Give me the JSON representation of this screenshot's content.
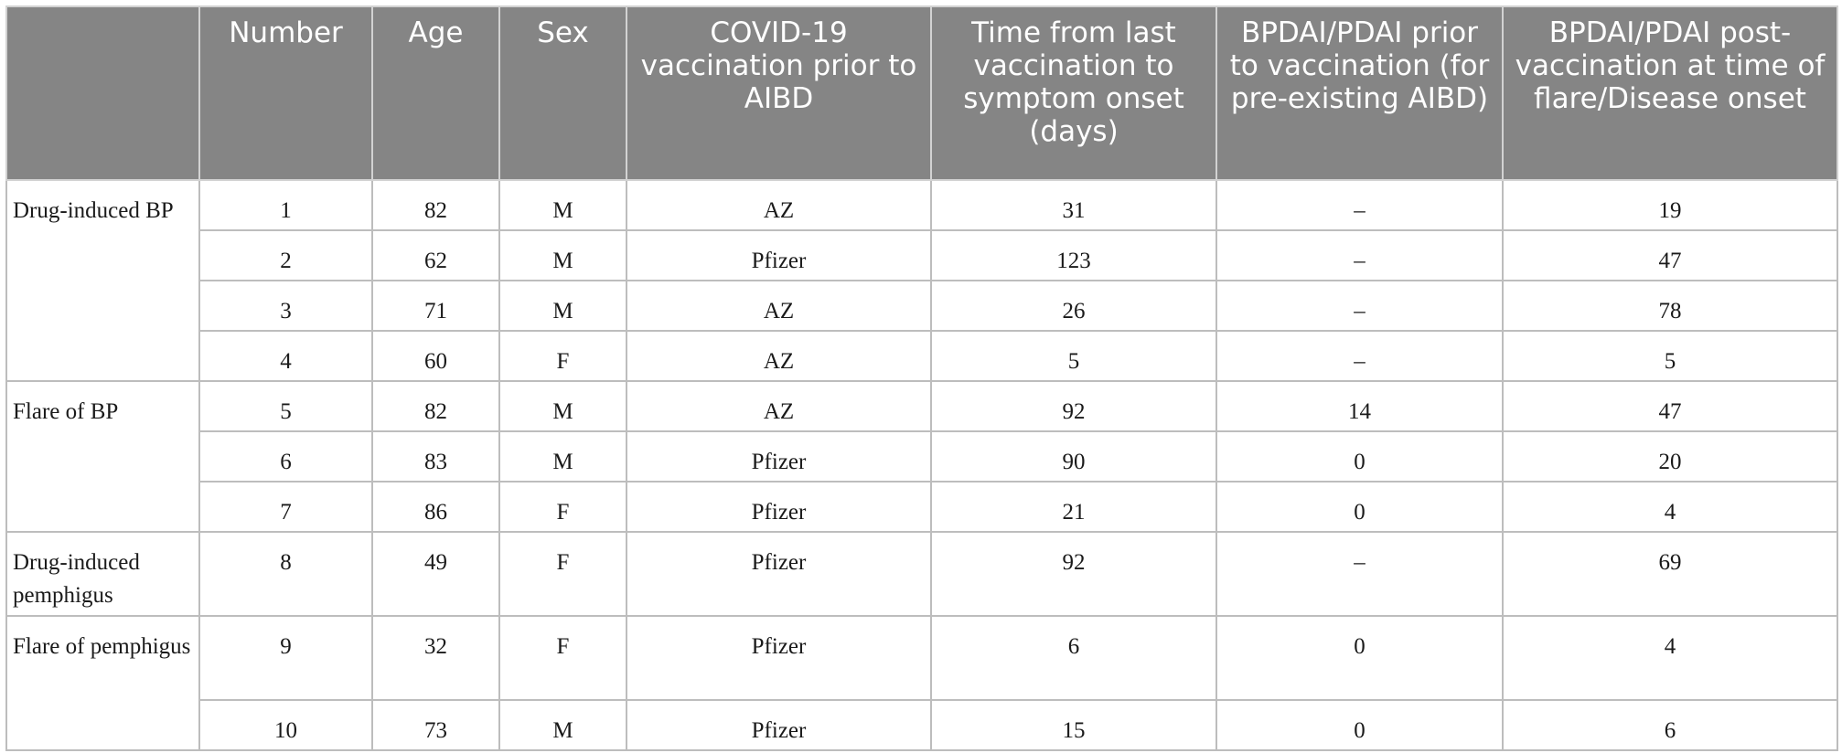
{
  "table": {
    "headers": [
      "",
      "Number",
      "Age",
      "Sex",
      "COVID-19 vaccination prior to AIBD",
      "Time from last vaccination to symptom onset (days)",
      "BPDAI/PDAI prior to vaccination (for pre-existing AIBD)",
      "BPDAI/PDAI post-vaccination at time of flare/Disease onset"
    ],
    "groups": [
      "Drug-induced BP",
      "Flare of BP",
      "Drug-induced pemphigus",
      "Flare of pemphigus"
    ],
    "rows": [
      {
        "number": "1",
        "age": "82",
        "sex": "M",
        "vaccine": "AZ",
        "days": "31",
        "prior": "–",
        "post": "19"
      },
      {
        "number": "2",
        "age": "62",
        "sex": "M",
        "vaccine": "Pfizer",
        "days": "123",
        "prior": "–",
        "post": "47"
      },
      {
        "number": "3",
        "age": "71",
        "sex": "M",
        "vaccine": "AZ",
        "days": "26",
        "prior": "–",
        "post": "78"
      },
      {
        "number": "4",
        "age": "60",
        "sex": "F",
        "vaccine": "AZ",
        "days": "5",
        "prior": "–",
        "post": "5"
      },
      {
        "number": "5",
        "age": "82",
        "sex": "M",
        "vaccine": "AZ",
        "days": "92",
        "prior": "14",
        "post": "47"
      },
      {
        "number": "6",
        "age": "83",
        "sex": "M",
        "vaccine": "Pfizer",
        "days": "90",
        "prior": "0",
        "post": "20"
      },
      {
        "number": "7",
        "age": "86",
        "sex": "F",
        "vaccine": "Pfizer",
        "days": "21",
        "prior": "0",
        "post": "4"
      },
      {
        "number": "8",
        "age": "49",
        "sex": "F",
        "vaccine": "Pfizer",
        "days": "92",
        "prior": "–",
        "post": "69"
      },
      {
        "number": "9",
        "age": "32",
        "sex": "F",
        "vaccine": "Pfizer",
        "days": "6",
        "prior": "0",
        "post": "4"
      },
      {
        "number": "10",
        "age": "73",
        "sex": "M",
        "vaccine": "Pfizer",
        "days": "15",
        "prior": "0",
        "post": "6"
      }
    ]
  }
}
